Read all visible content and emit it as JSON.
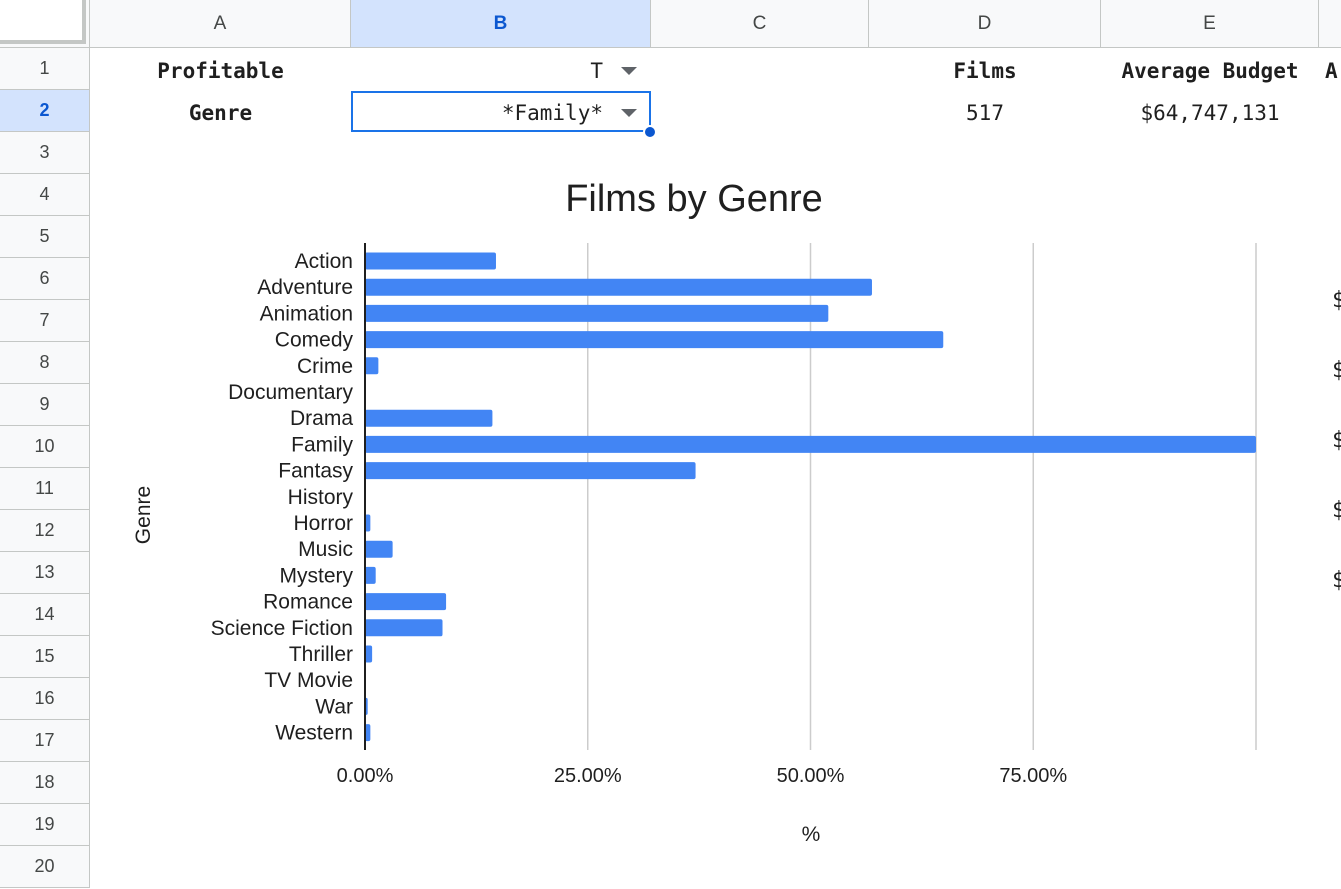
{
  "columns": [
    "A",
    "B",
    "C",
    "D",
    "E",
    ""
  ],
  "selected_column": "B",
  "rows": [
    "1",
    "2",
    "3",
    "4",
    "5",
    "6",
    "7",
    "8",
    "9",
    "10",
    "11",
    "12",
    "13",
    "14",
    "15",
    "16",
    "17",
    "18",
    "19",
    "20"
  ],
  "selected_row": "2",
  "cells": {
    "a1": "Profitable",
    "b1": "T",
    "d1": "Films",
    "e1": "Average Budget",
    "f1": "A",
    "a2": "Genre",
    "b2": "*Family*",
    "d2": "517",
    "e2": "$64,747,131"
  },
  "peek_chars": [
    "$",
    "$",
    "$",
    "$",
    "$"
  ],
  "colors": {
    "bar": "#4285f4",
    "selection": "#1a73e8",
    "header_selected": "#d3e3fd"
  },
  "chart_data": {
    "type": "bar",
    "orientation": "horizontal",
    "title": "Films by Genre",
    "xlabel": "%",
    "ylabel": "Genre",
    "xlim": [
      0,
      1
    ],
    "x_ticks": [
      "0.00%",
      "25.00%",
      "50.00%",
      "75.00%"
    ],
    "grid": true,
    "categories": [
      "Action",
      "Adventure",
      "Animation",
      "Comedy",
      "Crime",
      "Documentary",
      "Drama",
      "Family",
      "Fantasy",
      "History",
      "Horror",
      "Music",
      "Mystery",
      "Romance",
      "Science Fiction",
      "Thriller",
      "TV Movie",
      "War",
      "Western"
    ],
    "values": [
      0.147,
      0.569,
      0.52,
      0.649,
      0.015,
      0.0,
      0.143,
      1.0,
      0.371,
      0.0,
      0.006,
      0.031,
      0.012,
      0.091,
      0.087,
      0.008,
      0.0,
      0.003,
      0.006
    ]
  }
}
